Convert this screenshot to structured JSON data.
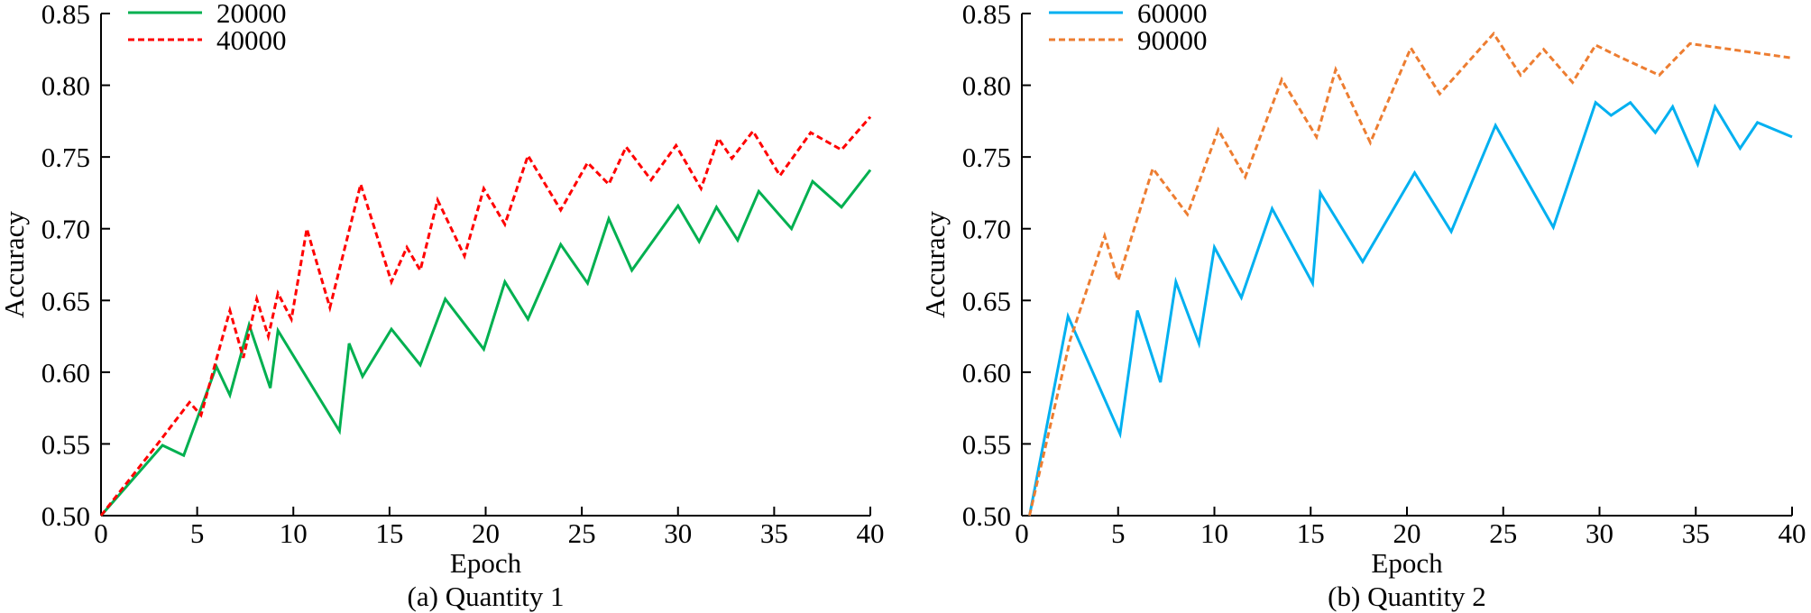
{
  "chart_data": [
    {
      "type": "line",
      "caption": "(a) Quantity 1",
      "xlabel": "Epoch",
      "ylabel": "Accuracy",
      "xlim": [
        0,
        40
      ],
      "ylim": [
        0.5,
        0.85
      ],
      "xticks": [
        "0",
        "5",
        "10",
        "15",
        "20",
        "25",
        "30",
        "35",
        "40"
      ],
      "yticks": [
        "0.50",
        "0.55",
        "0.60",
        "0.65",
        "0.70",
        "0.75",
        "0.80",
        "0.85"
      ],
      "grid": false,
      "legend_position": "top-left",
      "series": [
        {
          "name": "20000",
          "color": "#00b050",
          "style": "solid",
          "x": [
            0,
            3.2,
            4.3,
            6.0,
            6.7,
            7.7,
            8.8,
            9.2,
            12.4,
            12.9,
            13.6,
            15.1,
            16.6,
            17.9,
            19.9,
            21.0,
            22.2,
            23.9,
            25.3,
            26.4,
            27.6,
            30.0,
            31.1,
            32.0,
            33.1,
            34.2,
            35.9,
            37.0,
            38.5,
            40.0
          ],
          "y": [
            0.5,
            0.549,
            0.542,
            0.604,
            0.584,
            0.633,
            0.589,
            0.629,
            0.559,
            0.62,
            0.597,
            0.63,
            0.605,
            0.651,
            0.616,
            0.663,
            0.637,
            0.689,
            0.662,
            0.707,
            0.671,
            0.716,
            0.691,
            0.715,
            0.692,
            0.726,
            0.7,
            0.733,
            0.715,
            0.741
          ]
        },
        {
          "name": "40000",
          "color": "#ff0000",
          "style": "dashed",
          "x": [
            0,
            3.0,
            4.6,
            5.2,
            6.7,
            7.4,
            8.1,
            8.7,
            9.2,
            9.9,
            10.7,
            11.9,
            13.5,
            15.1,
            15.9,
            16.6,
            17.5,
            18.9,
            19.9,
            21.0,
            22.2,
            23.9,
            25.3,
            26.4,
            27.3,
            28.6,
            29.9,
            31.2,
            32.1,
            32.8,
            33.9,
            35.3,
            36.9,
            38.5,
            40.0
          ],
          "y": [
            0.5,
            0.551,
            0.579,
            0.57,
            0.643,
            0.61,
            0.651,
            0.625,
            0.655,
            0.637,
            0.7,
            0.645,
            0.731,
            0.663,
            0.687,
            0.671,
            0.72,
            0.681,
            0.728,
            0.703,
            0.751,
            0.713,
            0.746,
            0.731,
            0.757,
            0.734,
            0.758,
            0.728,
            0.763,
            0.749,
            0.768,
            0.737,
            0.767,
            0.755,
            0.778
          ]
        }
      ]
    },
    {
      "type": "line",
      "caption": "(b) Quantity 2",
      "xlabel": "Epoch",
      "ylabel": "Accuracy",
      "xlim": [
        0,
        40
      ],
      "ylim": [
        0.5,
        0.85
      ],
      "xticks": [
        "0",
        "5",
        "10",
        "15",
        "20",
        "25",
        "30",
        "35",
        "40"
      ],
      "yticks": [
        "0.50",
        "0.55",
        "0.60",
        "0.65",
        "0.70",
        "0.75",
        "0.80",
        "0.85"
      ],
      "grid": false,
      "legend_position": "top-left",
      "series": [
        {
          "name": "60000",
          "color": "#00b0f0",
          "style": "solid",
          "x": [
            0.4,
            2.4,
            5.1,
            6.0,
            7.2,
            8.0,
            9.2,
            10.0,
            11.4,
            13.0,
            15.1,
            15.5,
            17.7,
            20.4,
            22.3,
            24.6,
            27.6,
            29.8,
            30.6,
            31.6,
            32.9,
            33.8,
            35.1,
            36.0,
            37.3,
            38.2,
            40.0
          ],
          "y": [
            0.5,
            0.639,
            0.557,
            0.643,
            0.593,
            0.663,
            0.62,
            0.687,
            0.652,
            0.714,
            0.662,
            0.725,
            0.677,
            0.739,
            0.698,
            0.772,
            0.701,
            0.788,
            0.779,
            0.788,
            0.767,
            0.785,
            0.745,
            0.785,
            0.756,
            0.774,
            0.764
          ]
        },
        {
          "name": "90000",
          "color": "#ed7d31",
          "style": "dashed",
          "x": [
            0.4,
            2.5,
            4.3,
            5.0,
            6.8,
            8.6,
            10.2,
            11.6,
            13.5,
            15.3,
            16.3,
            18.1,
            20.2,
            21.7,
            24.5,
            25.9,
            27.1,
            28.6,
            29.8,
            31.0,
            33.1,
            34.7,
            40.0
          ],
          "y": [
            0.5,
            0.622,
            0.695,
            0.664,
            0.742,
            0.71,
            0.769,
            0.736,
            0.804,
            0.764,
            0.811,
            0.76,
            0.826,
            0.794,
            0.836,
            0.807,
            0.825,
            0.802,
            0.828,
            0.82,
            0.807,
            0.829,
            0.819
          ]
        }
      ]
    }
  ]
}
